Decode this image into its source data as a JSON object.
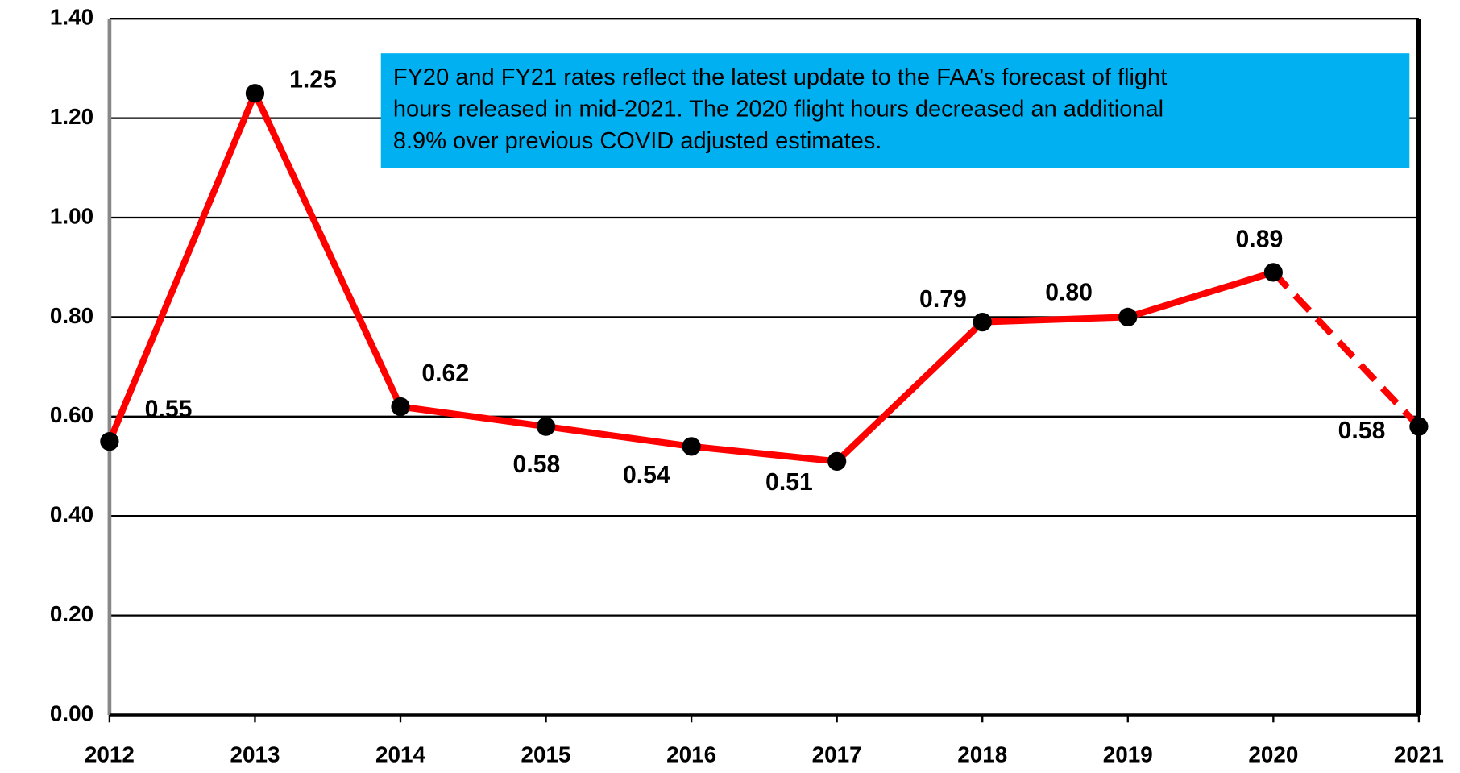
{
  "chart_data": {
    "type": "line",
    "categories": [
      "2012",
      "2013",
      "2014",
      "2015",
      "2016",
      "2017",
      "2018",
      "2019",
      "2020",
      "2021"
    ],
    "series": [
      {
        "color": "#ff0000",
        "marker_color": "#000000",
        "values": [
          0.55,
          1.25,
          0.62,
          0.58,
          0.54,
          0.51,
          0.79,
          0.8,
          0.89,
          0.58
        ],
        "value_labels": [
          "0.55",
          "1.25",
          "0.62",
          "0.58",
          "0.54",
          "0.51",
          "0.79",
          "0.80",
          "0.89",
          "0.58"
        ],
        "dashed_from": "2020"
      }
    ],
    "ylim": [
      0,
      1.4
    ],
    "yticks": [
      {
        "value": 0,
        "label": "0.00"
      },
      {
        "value": 0.2,
        "label": "0.20"
      },
      {
        "value": 0.4,
        "label": "0.40"
      },
      {
        "value": 0.6,
        "label": "0.60"
      },
      {
        "value": 0.8,
        "label": "0.80"
      },
      {
        "value": 1.0,
        "label": "1.00"
      },
      {
        "value": 1.2,
        "label": "1.20"
      },
      {
        "value": 1.4,
        "label": "1.40"
      }
    ],
    "grid": true,
    "annotation": {
      "color": "#00b0f0",
      "lines": [
        "FY20 and FY21 rates reflect the latest update to the FAA’s forecast of flight",
        "hours released in mid-2021. The 2020 flight hours decreased an additional",
        "8.9% over previous COVID adjusted estimates."
      ]
    }
  }
}
